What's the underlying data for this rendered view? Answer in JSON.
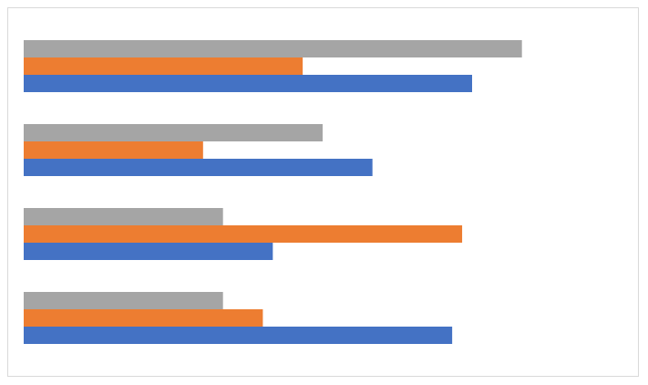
{
  "chart_data": {
    "type": "bar",
    "orientation": "horizontal",
    "categories": [
      null,
      null,
      null,
      null
    ],
    "series": [
      {
        "color": "#4472c4",
        "values": [
          4.3,
          2.5,
          3.5,
          4.5
        ]
      },
      {
        "color": "#ed7d31",
        "values": [
          2.4,
          4.4,
          1.8,
          2.8
        ]
      },
      {
        "color": "#a5a5a5",
        "values": [
          2,
          2,
          3,
          5
        ]
      }
    ],
    "xlim": [
      0,
      6
    ]
  }
}
